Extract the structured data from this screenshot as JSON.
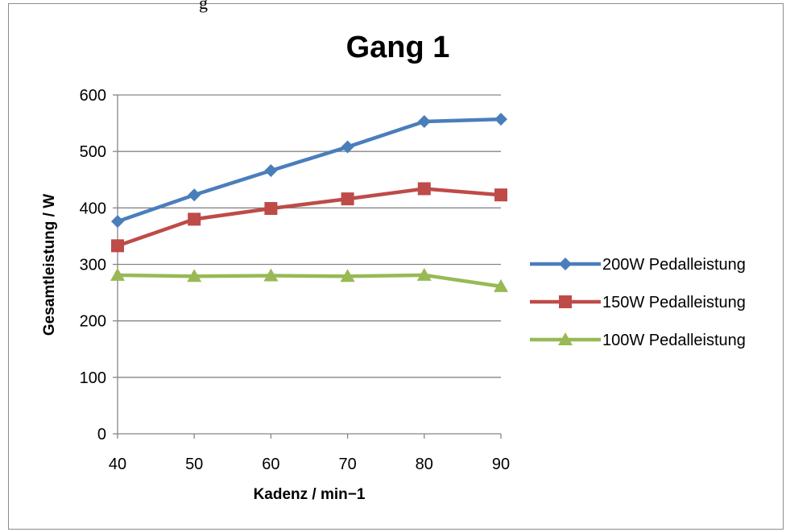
{
  "top_fragment": "g",
  "chart_data": {
    "type": "line",
    "title": "Gang 1",
    "xlabel": "Kadenz / min−1",
    "ylabel": "Gesamtleistung / W",
    "x": [
      40,
      50,
      60,
      70,
      80,
      90
    ],
    "x_ticks": [
      "40",
      "50",
      "60",
      "70",
      "80",
      "90"
    ],
    "ylim": [
      0,
      600
    ],
    "y_ticks": [
      "0",
      "100",
      "200",
      "300",
      "400",
      "500",
      "600"
    ],
    "grid": true,
    "legend_position": "right",
    "series": [
      {
        "name": "200W Pedalleistung",
        "color": "#4a7ebb",
        "marker": "diamond",
        "values": [
          376,
          423,
          466,
          508,
          553,
          557
        ]
      },
      {
        "name": "150W Pedalleistung",
        "color": "#be4b48",
        "marker": "square",
        "values": [
          333,
          380,
          399,
          416,
          434,
          423
        ]
      },
      {
        "name": "100W Pedalleistung",
        "color": "#98b954",
        "marker": "triangle",
        "values": [
          281,
          279,
          280,
          279,
          281,
          261
        ]
      }
    ]
  }
}
